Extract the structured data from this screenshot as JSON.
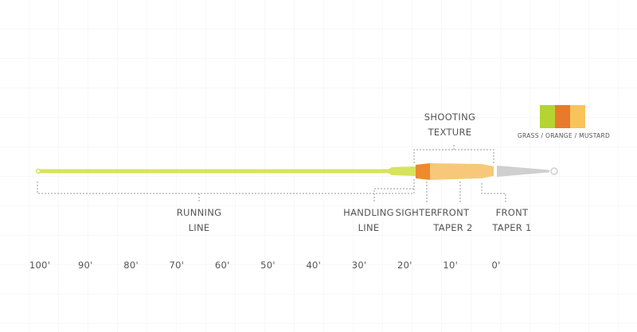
{
  "legend": {
    "text": "GRASS / ORANGE / MUSTARD"
  },
  "labels": {
    "running_line": [
      "RUNNING",
      "LINE"
    ],
    "handling_line": [
      "HANDLING",
      "LINE"
    ],
    "sighter": [
      "SIGHTER"
    ],
    "front_taper_2": [
      "FRONT",
      "TAPER 2"
    ],
    "front_taper_1": [
      "FRONT",
      "TAPER 1"
    ],
    "shooting_texture": [
      "SHOOTING",
      "TEXTURE"
    ]
  },
  "scale": [
    "100'",
    "90'",
    "80'",
    "70'",
    "60'",
    "50'",
    "40'",
    "30'",
    "20'",
    "10'",
    "0'"
  ]
}
